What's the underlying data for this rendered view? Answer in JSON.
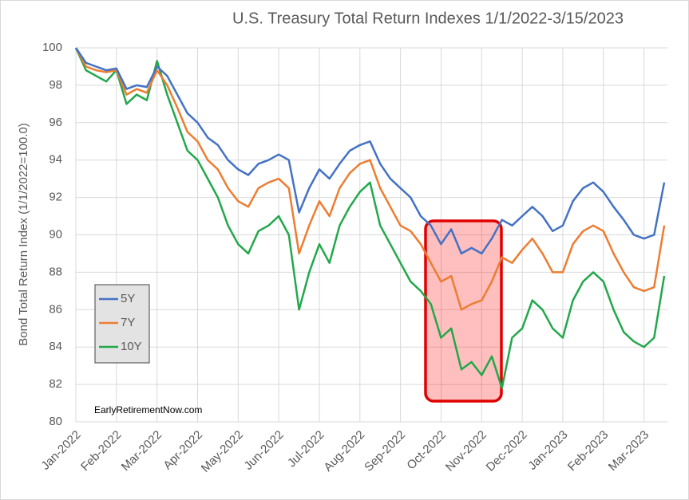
{
  "chart_data": {
    "type": "line",
    "title": "U.S. Treasury Total Return Indexes 1/1/2022-3/15/2023",
    "y_label": "Bond Total Return Index (1/1/2022=100.0)",
    "annotation": "EarlyRetirementNow.com",
    "categories": [
      "Jan-2022",
      null,
      null,
      null,
      "Feb-2022",
      null,
      null,
      null,
      "Mar-2022",
      null,
      null,
      null,
      "Apr-2022",
      null,
      null,
      null,
      "May-2022",
      null,
      null,
      null,
      "Jun-2022",
      null,
      null,
      null,
      "Jul-2022",
      null,
      null,
      null,
      "Aug-2022",
      null,
      null,
      null,
      "Sep-2022",
      null,
      null,
      null,
      "Oct-2022",
      null,
      null,
      null,
      "Nov-2022",
      null,
      null,
      null,
      "Dec-2022",
      null,
      null,
      null,
      "Jan-2023",
      null,
      null,
      null,
      "Feb-2023",
      null,
      null,
      null,
      "Mar-2023",
      null,
      null
    ],
    "series": [
      {
        "name": "5Y",
        "color": "#4472c4",
        "values": [
          100,
          99.2,
          99.0,
          98.8,
          98.9,
          97.8,
          98.0,
          97.9,
          99.0,
          98.5,
          97.5,
          96.5,
          96.0,
          95.2,
          94.8,
          94.0,
          93.5,
          93.2,
          93.8,
          94.0,
          94.3,
          94.0,
          91.2,
          92.5,
          93.5,
          93.0,
          93.8,
          94.5,
          94.8,
          95.0,
          93.8,
          93.0,
          92.5,
          92.0,
          91.0,
          90.5,
          89.5,
          90.3,
          89.0,
          89.3,
          89.0,
          89.8,
          90.8,
          90.5,
          91.0,
          91.5,
          91.0,
          90.2,
          90.5,
          91.8,
          92.5,
          92.8,
          92.3,
          91.5,
          90.8,
          90.0,
          89.8,
          90.0,
          92.8
        ]
      },
      {
        "name": "7Y",
        "color": "#ed7d31",
        "values": [
          100,
          99.0,
          98.8,
          98.7,
          98.8,
          97.5,
          97.8,
          97.6,
          98.8,
          98.0,
          96.8,
          95.5,
          95.0,
          94.0,
          93.5,
          92.5,
          91.8,
          91.5,
          92.5,
          92.8,
          93.0,
          92.5,
          89.0,
          90.5,
          91.8,
          91.0,
          92.5,
          93.3,
          93.8,
          94.0,
          92.5,
          91.5,
          90.5,
          90.2,
          89.5,
          88.5,
          87.5,
          87.8,
          86.0,
          86.3,
          86.5,
          87.5,
          88.8,
          88.5,
          89.2,
          89.8,
          89.0,
          88.0,
          88.0,
          89.5,
          90.2,
          90.5,
          90.2,
          89.0,
          88.0,
          87.2,
          87.0,
          87.2,
          90.5
        ]
      },
      {
        "name": "10Y",
        "color": "#22a84a",
        "values": [
          100,
          98.8,
          98.5,
          98.2,
          98.8,
          97.0,
          97.5,
          97.2,
          99.3,
          97.5,
          96.0,
          94.5,
          94.0,
          93.0,
          92.0,
          90.5,
          89.5,
          89.0,
          90.2,
          90.5,
          91.0,
          90.0,
          86.0,
          88.0,
          89.5,
          88.5,
          90.5,
          91.5,
          92.3,
          92.8,
          90.5,
          89.5,
          88.5,
          87.5,
          87.0,
          86.3,
          84.5,
          85.0,
          82.8,
          83.2,
          82.5,
          83.5,
          81.8,
          84.5,
          85.0,
          86.5,
          86.0,
          85.0,
          84.5,
          86.5,
          87.5,
          88.0,
          87.5,
          86.0,
          84.8,
          84.3,
          84.0,
          84.5,
          87.8
        ]
      }
    ],
    "ylim": [
      80,
      100
    ],
    "yticks": [
      80,
      82,
      84,
      86,
      88,
      90,
      92,
      94,
      96,
      98,
      100
    ],
    "grid": true
  }
}
